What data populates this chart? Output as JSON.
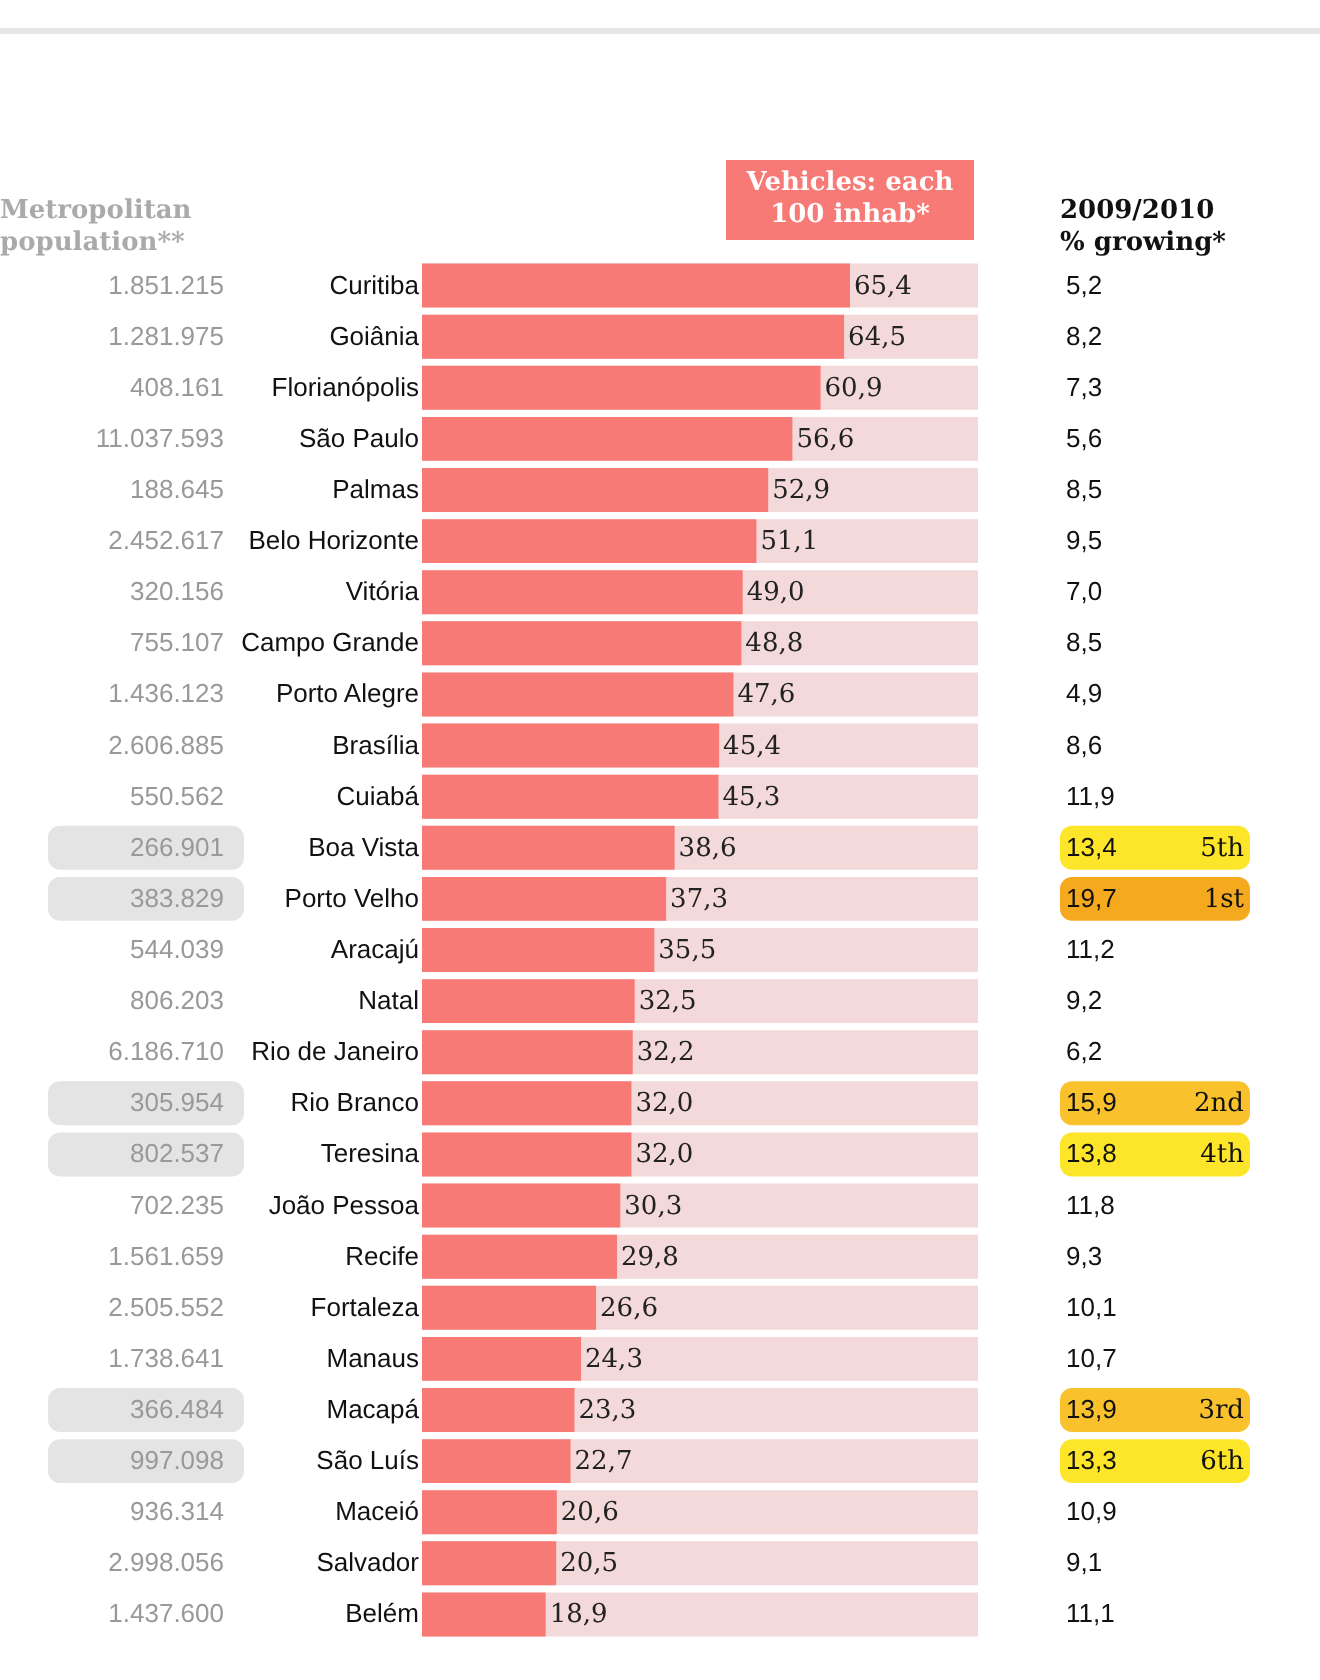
{
  "chart_data": [
    {
      "type": "other",
      "title": "Metropolitan population**",
      "values": [
        1851215,
        1281975,
        408161,
        11037593,
        188645,
        2452617,
        320156,
        755107,
        1436123,
        2606885,
        550562,
        266901,
        383829,
        544039,
        806203,
        6186710,
        305954,
        802537,
        702235,
        1561659,
        2505552,
        1738641,
        366484,
        997098,
        936314,
        2998056,
        1437600
      ],
      "value_labels": [
        "1.851.215",
        "1.281.975",
        "408.161",
        "11.037.593",
        "188.645",
        "2.452.617",
        "320.156",
        "755.107",
        "1.436.123",
        "2.606.885",
        "550.562",
        "266.901",
        "383.829",
        "544.039",
        "806.203",
        "6.186.710",
        "305.954",
        "802.537",
        "702.235",
        "1.561.659",
        "2.505.552",
        "1.738.641",
        "366.484",
        "997.098",
        "936.314",
        "2.998.056",
        "1.437.600"
      ],
      "colors": [
        "#ffffff",
        "#ffffff",
        "#ffffff",
        "#ffffff",
        "#ffffff",
        "#ffffff",
        "#ffffff",
        "#ffffff",
        "#ffffff",
        "#ffffff",
        "#ffffff",
        "#e4e4e4",
        "#e4e4e4",
        "#ffffff",
        "#ffffff",
        "#ffffff",
        "#e4e4e4",
        "#e4e4e4",
        "#ffffff",
        "#ffffff",
        "#ffffff",
        "#ffffff",
        "#e4e4e4",
        "#e4e4e4",
        "#ffffff",
        "#ffffff",
        "#ffffff"
      ]
    },
    {
      "type": "bar",
      "orientation": "horizontal",
      "title": "Vehicles: each 100 inhab*",
      "tick_labels": "y",
      "color": "#f87a76",
      "categories": [
        "Curitiba",
        "Goiânia",
        "Florianópolis",
        "São Paulo",
        "Palmas",
        "Belo Horizonte",
        "Vitória",
        "Campo Grande",
        "Porto Alegre",
        "Brasília",
        "Cuiabá",
        "Boa Vista",
        "Porto Velho",
        "Aracajú",
        "Natal",
        "Rio de Janeiro",
        "Rio Branco",
        "Teresina",
        "João Pessoa",
        "Recife",
        "Fortaleza",
        "Manaus",
        "Macapá",
        "São Luís",
        "Maceió",
        "Salvador",
        "Belém"
      ],
      "values": [
        65.4,
        64.5,
        60.9,
        56.6,
        52.9,
        51.1,
        49.0,
        48.8,
        47.6,
        45.4,
        45.3,
        38.6,
        37.3,
        35.5,
        32.5,
        32.2,
        32.0,
        32.0,
        30.3,
        29.8,
        26.6,
        24.3,
        23.3,
        22.7,
        20.6,
        20.5,
        18.9
      ],
      "value_labels": [
        "65,4",
        "64,5",
        "60,9",
        "56,6",
        "52,9",
        "51,1",
        "49,0",
        "48,8",
        "47,6",
        "45,4",
        "45,3",
        "38,6",
        "37,3",
        "35,5",
        "32,5",
        "32,2",
        "32,0",
        "32,0",
        "30,3",
        "29,8",
        "26,6",
        "24,3",
        "23,3",
        "22,7",
        "20,6",
        "20,5",
        "18,9"
      ]
    },
    {
      "type": "other",
      "title": "2009/2010 % growing*",
      "values": [
        5.2,
        8.2,
        7.3,
        5.6,
        8.5,
        9.5,
        7.0,
        8.5,
        4.9,
        8.6,
        11.9,
        13.4,
        19.7,
        11.2,
        9.2,
        6.2,
        15.9,
        13.8,
        11.8,
        9.3,
        10.1,
        10.7,
        13.9,
        13.3,
        10.9,
        9.1,
        11.1
      ],
      "value_labels": [
        "5,2",
        "8,2",
        "7,3",
        "5,6",
        "8,5",
        "9,5",
        "7,0",
        "8,5",
        "4,9",
        "8,6",
        "11,9",
        "13,4",
        "19,7",
        "11,2",
        "9,2",
        "6,2",
        "15,9",
        "13,8",
        "11,8",
        "9,3",
        "10,1",
        "10,7",
        "13,9",
        "13,3",
        "10,9",
        "9,1",
        "11,1"
      ],
      "colors": [
        "#ffffff",
        "#ffffff",
        "#ffffff",
        "#ffffff",
        "#ffffff",
        "#ffffff",
        "#ffffff",
        "#ffffff",
        "#ffffff",
        "#ffffff",
        "#ffffff",
        "#fde62a",
        "#f5a91e",
        "#ffffff",
        "#ffffff",
        "#ffffff",
        "#f9c22c",
        "#fde62a",
        "#ffffff",
        "#ffffff",
        "#ffffff",
        "#ffffff",
        "#f9c22c",
        "#fde62a",
        "#ffffff",
        "#ffffff",
        "#ffffff"
      ]
    },
    {
      "type": "other",
      "values": [
        null,
        null,
        null,
        null,
        null,
        null,
        null,
        null,
        null,
        null,
        null,
        5,
        1,
        null,
        null,
        null,
        2,
        4,
        null,
        null,
        null,
        null,
        3,
        6,
        null,
        null,
        null
      ],
      "value_labels": [
        null,
        null,
        null,
        null,
        null,
        null,
        null,
        null,
        null,
        null,
        null,
        "5th",
        "1st",
        null,
        null,
        null,
        "2nd",
        "4th",
        null,
        null,
        null,
        null,
        "3rd",
        "6th",
        null,
        null,
        null
      ]
    }
  ]
}
